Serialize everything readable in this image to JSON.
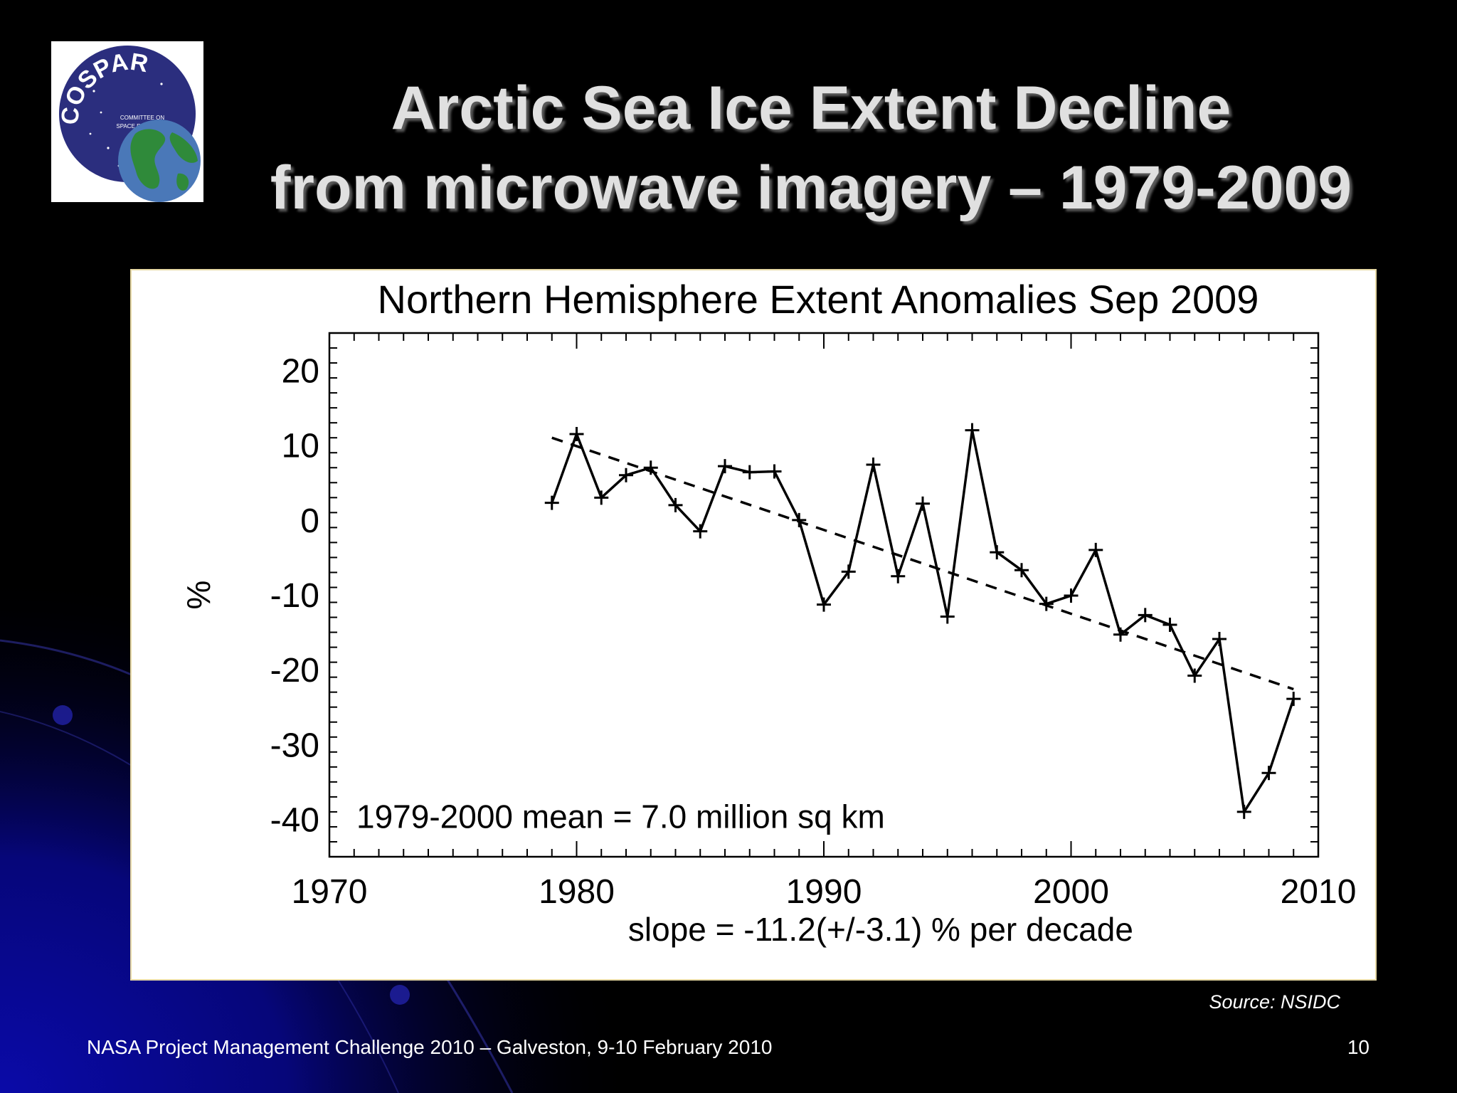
{
  "slide": {
    "title_line1": "Arctic Sea Ice Extent Decline",
    "title_line2": "from microwave imagery – 1979-2009",
    "source": "Source: NSIDC",
    "footer": "NASA Project Management Challenge 2010 – Galveston, 9-10 February 2010",
    "page_number": "10"
  },
  "logo": {
    "arc_text": "COSPAR",
    "line1": "COMMITTEE ON",
    "line2": "SPACE RESEARCH"
  },
  "colors": {
    "background": "#000000",
    "accent_blue": "#0a0a9e",
    "title_text": "#e0e0e0",
    "logo_blue": "#2b2e7e"
  },
  "chart_data": {
    "type": "line",
    "title": "Northern Hemisphere Extent Anomalies Sep 2009",
    "ylabel": "%",
    "xlim": [
      1970,
      2010
    ],
    "ylim": [
      -45,
      25
    ],
    "x_ticks": [
      "1970",
      "1980",
      "1990",
      "2000",
      "2010"
    ],
    "y_ticks": [
      "20",
      "10",
      "0",
      "-10",
      "-20",
      "-30",
      "-40"
    ],
    "series": [
      {
        "x": [
          1979,
          1980,
          1981,
          1982,
          1983,
          1984,
          1985,
          1986,
          1987,
          1988,
          1989,
          1990,
          1991,
          1992,
          1993,
          1994,
          1995,
          1996,
          1997,
          1998,
          1999,
          2000,
          2001,
          2002,
          2003,
          2004,
          2005,
          2006,
          2007,
          2008,
          2009
        ],
        "values": [
          2.3,
          11.5,
          3.0,
          6.0,
          7.0,
          2.0,
          -1.5,
          7.2,
          6.4,
          6.5,
          0.0,
          -11.3,
          -6.9,
          7.4,
          -7.5,
          2.2,
          -12.9,
          12.0,
          -4.3,
          -6.7,
          -11.2,
          -10.1,
          -4.0,
          -15.3,
          -12.7,
          -14.0,
          -20.8,
          -15.9,
          -39.0,
          -33.8,
          -23.9
        ],
        "marker": "+"
      }
    ],
    "trend": {
      "style": "dashed",
      "x": [
        1979,
        2009
      ],
      "y": [
        11.0,
        -22.6
      ]
    },
    "annotations": {
      "mean": "1979-2000 mean =   7.0 million sq km",
      "slope": "slope = -11.2(+/-3.1) % per decade"
    }
  }
}
